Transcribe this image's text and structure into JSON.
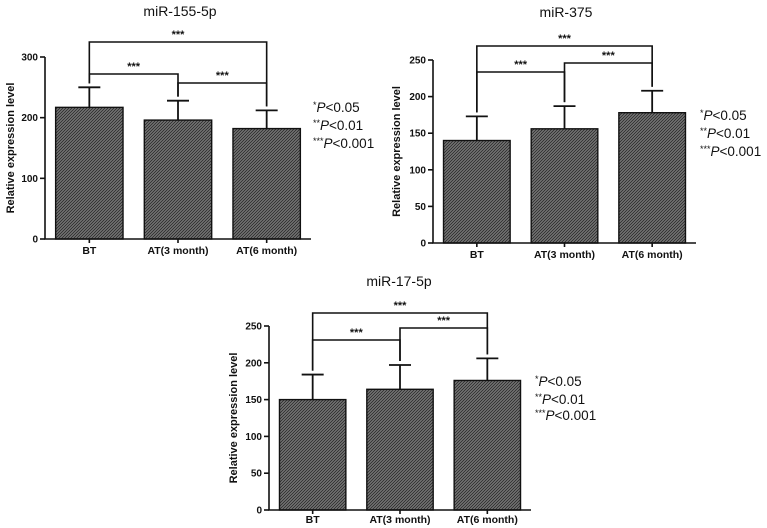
{
  "chart_data": [
    {
      "type": "bar",
      "title": "miR-155-5p",
      "ylabel": "Relative expression level",
      "xlabel": "",
      "categories": [
        "BT",
        "AT(3 month)",
        "AT(6 month)"
      ],
      "values": [
        217,
        196,
        182
      ],
      "errors": [
        33,
        32,
        30
      ],
      "ylim": [
        0,
        300
      ],
      "yticks": [
        "0",
        "100",
        "200",
        "300"
      ],
      "comparisons": [
        {
          "from": 0,
          "to": 1,
          "label": "***"
        },
        {
          "from": 1,
          "to": 2,
          "label": "***"
        },
        {
          "from": 0,
          "to": 2,
          "label": "***"
        }
      ],
      "legend": [
        {
          "stars": "*",
          "p": "P",
          "rest": "<0.05"
        },
        {
          "stars": "**",
          "p": "P",
          "rest": "<0.01"
        },
        {
          "stars": "***",
          "p": "P",
          "rest": "<0.001"
        }
      ]
    },
    {
      "type": "bar",
      "title": "miR-375",
      "ylabel": "Relative expression level",
      "xlabel": "",
      "categories": [
        "BT",
        "AT(3 month)",
        "AT(6 month)"
      ],
      "values": [
        140,
        156,
        178
      ],
      "errors": [
        33,
        31,
        30
      ],
      "ylim": [
        0,
        250
      ],
      "yticks": [
        "0",
        "50",
        "100",
        "150",
        "200",
        "250"
      ],
      "comparisons": [
        {
          "from": 0,
          "to": 1,
          "label": "***"
        },
        {
          "from": 1,
          "to": 2,
          "label": "***"
        },
        {
          "from": 0,
          "to": 2,
          "label": "***"
        }
      ],
      "legend": [
        {
          "stars": "*",
          "p": "P",
          "rest": "<0.05"
        },
        {
          "stars": "**",
          "p": "P",
          "rest": "<0.01"
        },
        {
          "stars": "***",
          "p": "P",
          "rest": "<0.001"
        }
      ]
    },
    {
      "type": "bar",
      "title": "miR-17-5p",
      "ylabel": "Relative expression level",
      "xlabel": "",
      "categories": [
        "BT",
        "AT(3 month)",
        "AT(6 month)"
      ],
      "values": [
        150,
        164,
        176
      ],
      "errors": [
        34,
        33,
        30
      ],
      "ylim": [
        0,
        250
      ],
      "yticks": [
        "0",
        "50",
        "100",
        "150",
        "200",
        "250"
      ],
      "comparisons": [
        {
          "from": 0,
          "to": 1,
          "label": "***"
        },
        {
          "from": 1,
          "to": 2,
          "label": "***"
        },
        {
          "from": 0,
          "to": 2,
          "label": "***"
        }
      ],
      "legend": [
        {
          "stars": "*",
          "p": "P",
          "rest": "<0.05"
        },
        {
          "stars": "**",
          "p": "P",
          "rest": "<0.01"
        },
        {
          "stars": "***",
          "p": "P",
          "rest": "<0.001"
        }
      ]
    }
  ]
}
